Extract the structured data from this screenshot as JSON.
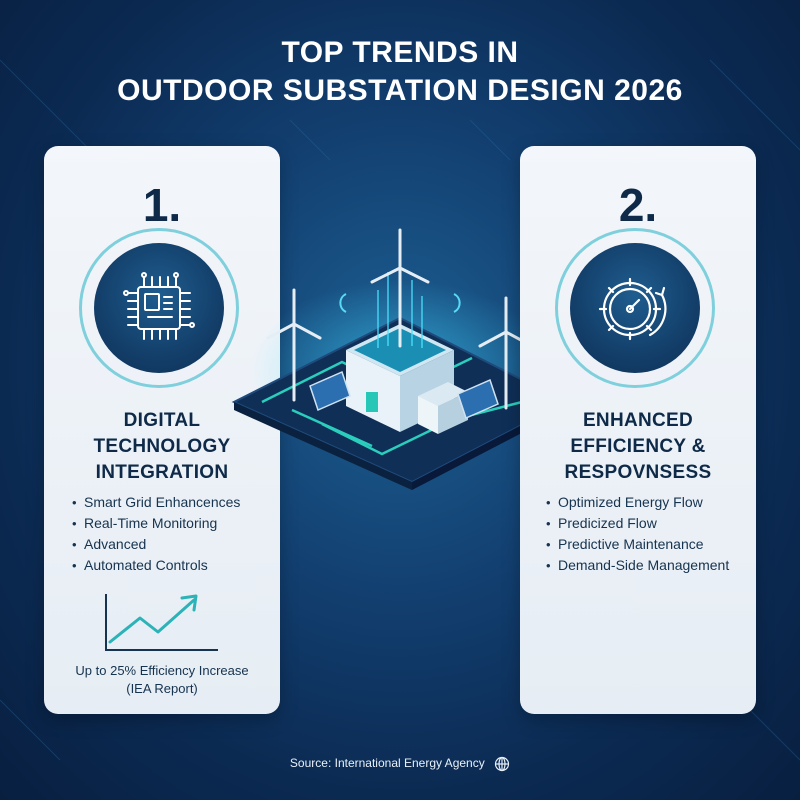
{
  "title": {
    "line1": "TOP TRENDS IN",
    "line2": "OUTDOOR SUBSTATION DESIGN 2026"
  },
  "left_card": {
    "number": "1.",
    "icon": "circuit-chip-icon",
    "heading_lines": [
      "DIGITAL",
      "TECHNOLOGY",
      "INTEGRATION"
    ],
    "bullets": [
      "Smart Grid Enhancences",
      "Real-Time Monitoring",
      "Advanced",
      "Automated Controls"
    ],
    "chart_icon": "trend-up-chart-icon",
    "chart_caption_lines": [
      "Up to 25% Efficiency Increase",
      "(IEA Report)"
    ]
  },
  "right_card": {
    "number": "2.",
    "icon": "gear-gauge-icon",
    "heading_lines": [
      "ENHANCED",
      "EFFICIENCY &",
      "RESPOVNSESS"
    ],
    "bullets": [
      "Optimized Energy Flow",
      "Predicized Flow",
      "Predictive Maintenance",
      "Demand-Side Management"
    ]
  },
  "illustration": "isometric-substation-with-wind-turbines-and-solar-panels",
  "source": {
    "text": "Source: International Energy Agency",
    "icon": "globe-icon"
  },
  "colors": {
    "background": "#0b2a52",
    "accent_teal": "#2fd3d0",
    "card": "#eef2f7",
    "heading_text": "#0e2a48"
  }
}
